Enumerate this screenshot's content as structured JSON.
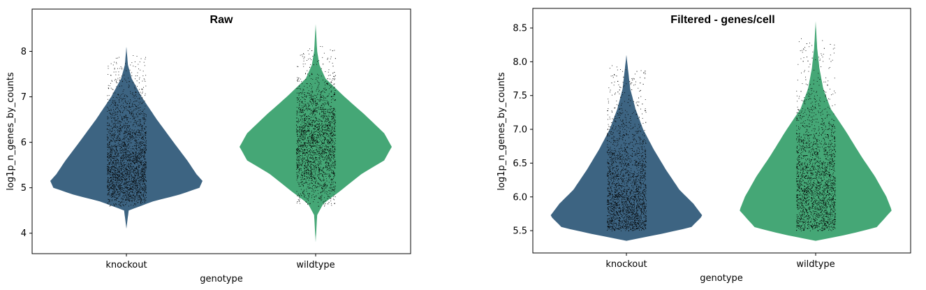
{
  "chart_data": [
    {
      "type": "violin",
      "title": "Raw",
      "xlabel": "genotype",
      "ylabel": "log1p_n_genes_by_counts",
      "categories": [
        "knockout",
        "wildtype"
      ],
      "colors": [
        "#3d6482",
        "#45a776"
      ],
      "ylim": [
        3.55,
        8.93
      ],
      "yticks": [
        4,
        5,
        6,
        7,
        8
      ],
      "yticklabels": [
        "4",
        "5",
        "6",
        "7",
        "8"
      ],
      "series": [
        {
          "min": 4.1,
          "max": 8.1,
          "mode": 5.15,
          "profile": [
            [
              4.1,
              0.0
            ],
            [
              4.5,
              0.03
            ],
            [
              4.7,
              0.35
            ],
            [
              4.85,
              0.7
            ],
            [
              5.0,
              0.96
            ],
            [
              5.15,
              1.0
            ],
            [
              5.3,
              0.92
            ],
            [
              5.6,
              0.8
            ],
            [
              6.0,
              0.62
            ],
            [
              6.5,
              0.4
            ],
            [
              7.0,
              0.2
            ],
            [
              7.4,
              0.07
            ],
            [
              7.7,
              0.02
            ],
            [
              8.1,
              0.0
            ]
          ],
          "jitter_range": [
            4.6,
            7.95
          ]
        },
        {
          "min": 3.8,
          "max": 8.6,
          "mode": 5.9,
          "profile": [
            [
              3.8,
              0.0
            ],
            [
              4.4,
              0.02
            ],
            [
              4.65,
              0.1
            ],
            [
              4.9,
              0.3
            ],
            [
              5.3,
              0.6
            ],
            [
              5.6,
              0.9
            ],
            [
              5.9,
              1.0
            ],
            [
              6.2,
              0.9
            ],
            [
              6.6,
              0.65
            ],
            [
              7.0,
              0.38
            ],
            [
              7.4,
              0.13
            ],
            [
              7.7,
              0.05
            ],
            [
              8.0,
              0.02
            ],
            [
              8.6,
              0.0
            ]
          ],
          "jitter_range": [
            4.6,
            8.15
          ]
        }
      ]
    },
    {
      "type": "violin",
      "title": "Filtered - genes/cell",
      "xlabel": "genotype",
      "ylabel": "log1p_n_genes_by_counts",
      "categories": [
        "knockout",
        "wildtype"
      ],
      "colors": [
        "#3d6482",
        "#45a776"
      ],
      "ylim": [
        5.17,
        8.79
      ],
      "yticks": [
        5.5,
        6.0,
        6.5,
        7.0,
        7.5,
        8.0,
        8.5
      ],
      "yticklabels": [
        "5.5",
        "6.0",
        "6.5",
        "7.0",
        "7.5",
        "8.0",
        "8.5"
      ],
      "series": [
        {
          "min": 5.35,
          "max": 8.1,
          "mode": 5.72,
          "profile": [
            [
              5.35,
              0.0
            ],
            [
              5.45,
              0.45
            ],
            [
              5.55,
              0.85
            ],
            [
              5.72,
              1.0
            ],
            [
              5.9,
              0.88
            ],
            [
              6.1,
              0.7
            ],
            [
              6.4,
              0.52
            ],
            [
              6.7,
              0.36
            ],
            [
              7.0,
              0.22
            ],
            [
              7.3,
              0.12
            ],
            [
              7.6,
              0.05
            ],
            [
              7.9,
              0.02
            ],
            [
              8.1,
              0.0
            ]
          ],
          "jitter_range": [
            5.5,
            7.95
          ]
        },
        {
          "min": 5.35,
          "max": 8.6,
          "mode": 5.8,
          "profile": [
            [
              5.35,
              0.0
            ],
            [
              5.45,
              0.45
            ],
            [
              5.55,
              0.8
            ],
            [
              5.8,
              1.0
            ],
            [
              6.0,
              0.93
            ],
            [
              6.3,
              0.78
            ],
            [
              6.6,
              0.6
            ],
            [
              7.0,
              0.38
            ],
            [
              7.3,
              0.2
            ],
            [
              7.6,
              0.1
            ],
            [
              7.9,
              0.05
            ],
            [
              8.2,
              0.02
            ],
            [
              8.6,
              0.0
            ]
          ],
          "jitter_range": [
            5.5,
            8.35
          ]
        }
      ]
    }
  ]
}
